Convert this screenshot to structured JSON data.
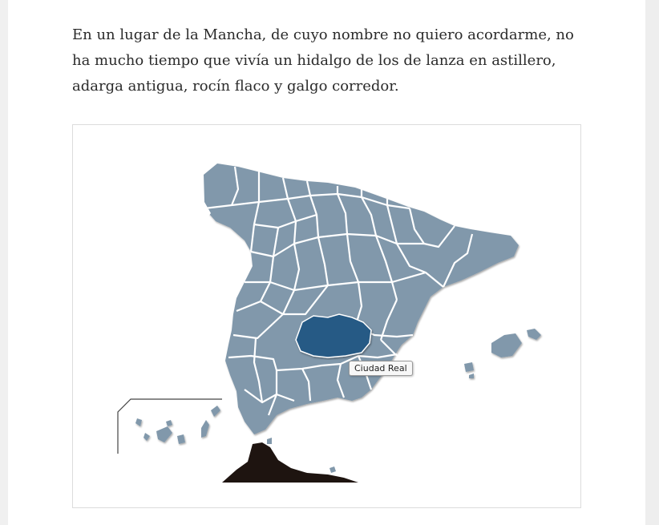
{
  "article": {
    "paragraph": "En un lugar de la Mancha, de cuyo nombre no quiero acordarme, no ha mucho tiempo que vivía un hidalgo de los de lanza en astillero, adarga antigua, rocín flaco y galgo corredor."
  },
  "map": {
    "tooltip": "Ciudad Real",
    "highlighted_province": "Ciudad Real",
    "colors": {
      "province": "#8198ab",
      "highlight": "#255a85",
      "border": "#ffffff",
      "morocco": "#1e1410"
    }
  }
}
